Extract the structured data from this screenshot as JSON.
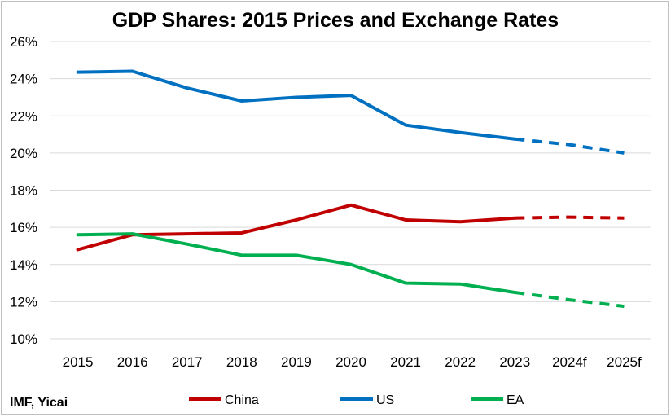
{
  "chart_data": {
    "type": "line",
    "title": "GDP Shares: 2015 Prices and Exchange Rates",
    "source": "IMF, Yicai",
    "categories": [
      "2015",
      "2016",
      "2017",
      "2018",
      "2019",
      "2020",
      "2021",
      "2022",
      "2023",
      "2024f",
      "2025f"
    ],
    "y_ticks": [
      "10%",
      "12%",
      "14%",
      "16%",
      "18%",
      "20%",
      "22%",
      "24%",
      "26%"
    ],
    "ylim": [
      10,
      26
    ],
    "grid": true,
    "legend_position": "bottom",
    "forecast_from_index": 8,
    "series": [
      {
        "name": "China",
        "color": "#C00000",
        "values": [
          14.8,
          15.6,
          15.65,
          15.7,
          16.4,
          17.2,
          16.4,
          16.3,
          16.5,
          16.55,
          16.5
        ]
      },
      {
        "name": "US",
        "color": "#0070C0",
        "values": [
          24.35,
          24.4,
          23.5,
          22.8,
          23.0,
          23.1,
          21.5,
          21.1,
          20.75,
          20.45,
          20.0
        ]
      },
      {
        "name": "EA",
        "color": "#00B050",
        "values": [
          15.6,
          15.65,
          15.1,
          14.5,
          14.5,
          14.0,
          13.0,
          12.95,
          12.5,
          12.1,
          11.75
        ]
      }
    ]
  }
}
